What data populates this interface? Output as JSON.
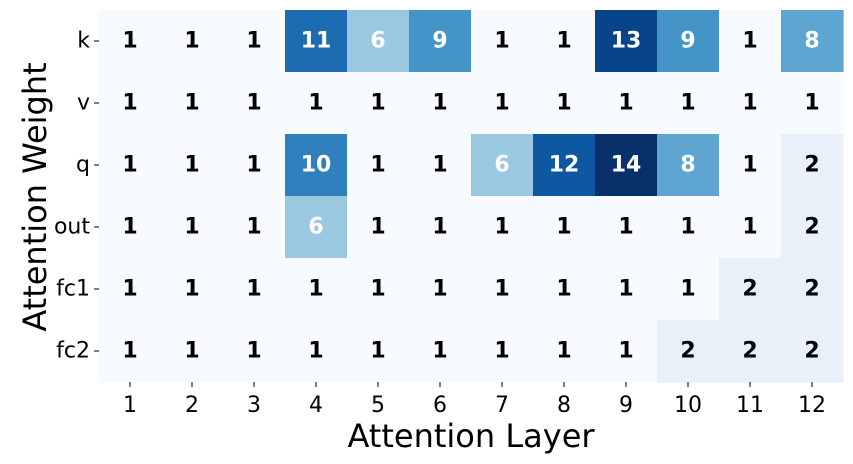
{
  "chart_data": {
    "type": "heatmap",
    "title": "",
    "xlabel": "Attention Layer",
    "ylabel": "Attention Weight",
    "x_categories": [
      "1",
      "2",
      "3",
      "4",
      "5",
      "6",
      "7",
      "8",
      "9",
      "10",
      "11",
      "12"
    ],
    "y_categories": [
      "k",
      "v",
      "q",
      "out",
      "fc1",
      "fc2"
    ],
    "values": [
      [
        1,
        1,
        1,
        11,
        6,
        9,
        1,
        1,
        13,
        9,
        1,
        8
      ],
      [
        1,
        1,
        1,
        1,
        1,
        1,
        1,
        1,
        1,
        1,
        1,
        1
      ],
      [
        1,
        1,
        1,
        10,
        1,
        1,
        6,
        12,
        14,
        8,
        1,
        2
      ],
      [
        1,
        1,
        1,
        6,
        1,
        1,
        1,
        1,
        1,
        1,
        1,
        2
      ],
      [
        1,
        1,
        1,
        1,
        1,
        1,
        1,
        1,
        1,
        1,
        2,
        2
      ],
      [
        1,
        1,
        1,
        1,
        1,
        1,
        1,
        1,
        1,
        2,
        2,
        2
      ]
    ],
    "colormap": "Blues",
    "value_range": [
      1,
      14
    ],
    "annotations": true,
    "grid": false,
    "colorbar": false
  }
}
